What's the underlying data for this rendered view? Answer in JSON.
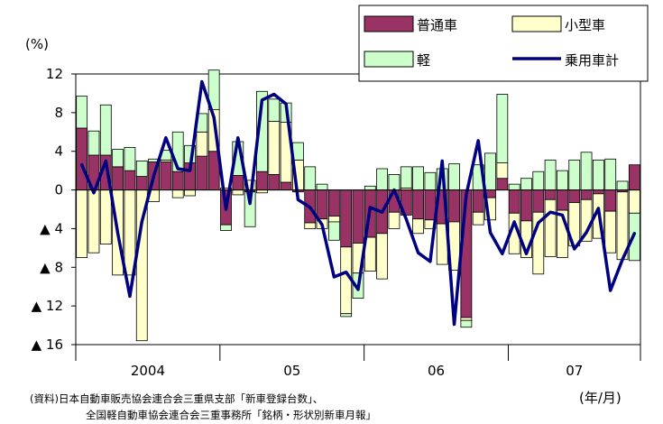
{
  "chart_data": {
    "type": "bar",
    "ylabel": "(%)",
    "xlabel": "(年/月)",
    "ylim": [
      -16,
      12
    ],
    "y_ticks": [
      12,
      8,
      4,
      0,
      -4,
      -8,
      -12,
      -16
    ],
    "y_tick_labels": [
      "12",
      "8",
      "4",
      "0",
      "▲ 4",
      "▲ 8",
      "▲ 12",
      "▲ 16"
    ],
    "x_group_labels": [
      "2004",
      "05",
      "06",
      "07"
    ],
    "legend_position": "top-right",
    "colors": {
      "regular": "#993366",
      "small": "#FFFFCC",
      "kei": "#CCFFCC",
      "total": "#000080"
    },
    "series": [
      {
        "name": "普通車",
        "type": "stacked-bar",
        "values": [
          6.4,
          3.6,
          3.6,
          2.4,
          2.0,
          1.4,
          2.9,
          2.9,
          1.9,
          2.8,
          3.5,
          4.0,
          -3.6,
          1.5,
          -0.2,
          1.9,
          1.6,
          0.8,
          -0.2,
          -3.4,
          -3.0,
          -2.7,
          -5.9,
          -5.5,
          -4.9,
          -4.5,
          -2.3,
          -2.6,
          -3.0,
          -3.1,
          -3.5,
          -3.3,
          -13.2,
          -2.3,
          -0.8,
          1.2,
          -2.4,
          -3.2,
          -2.3,
          -1.0,
          -2.1,
          -1.3,
          -1.0,
          -0.4,
          -2.2,
          -0.2,
          2.6
        ],
        "stack": "pos"
      },
      {
        "name": "小型車",
        "type": "stacked-bar",
        "values": [
          -7.0,
          -6.5,
          -5.6,
          -8.8,
          -8.8,
          -15.6,
          -1.2,
          0.2,
          -0.8,
          -0.6,
          2.5,
          4.3,
          0.2,
          -0.5,
          1.0,
          -0.3,
          5.5,
          6.2,
          3.1,
          -0.6,
          -1.0,
          -0.6,
          -6.9,
          -3.1,
          -3.5,
          -4.7,
          -1.7,
          0.2,
          -1.5,
          -0.9,
          -4.2,
          -5.0,
          -0.3,
          -1.3,
          -2.3,
          1.6,
          -4.2,
          -3.8,
          -6.4,
          -5.9,
          -4.9,
          -4.5,
          -4.3,
          -4.6,
          -4.3,
          -7.0,
          -2.4
        ]
      },
      {
        "name": "軽",
        "type": "stacked-bar",
        "values": [
          3.3,
          2.5,
          5.2,
          1.8,
          2.4,
          1.6,
          0.3,
          1.0,
          4.1,
          1.8,
          1.9,
          4.1,
          -0.6,
          3.5,
          -3.6,
          8.3,
          2.3,
          2.0,
          1.8,
          2.4,
          0.6,
          -1.9,
          -0.3,
          -2.6,
          0.4,
          2.2,
          1.6,
          2.2,
          2.4,
          1.8,
          2.2,
          2.7,
          -0.7,
          2.6,
          3.8,
          7.1,
          0.6,
          1.2,
          1.9,
          3.1,
          2.0,
          3.1,
          3.9,
          3.1,
          3.2,
          0.9,
          -4.9
        ]
      },
      {
        "name": "乗用車計",
        "type": "line",
        "values": [
          2.6,
          -0.3,
          3.0,
          -4.5,
          -11.0,
          -3.3,
          1.5,
          5.4,
          2.2,
          2.0,
          11.2,
          7.5,
          -2.0,
          5.4,
          -1.4,
          9.3,
          9.9,
          8.9,
          -1.0,
          -1.8,
          -3.6,
          -9.0,
          -8.5,
          -10.3,
          -1.8,
          -2.3,
          0.0,
          -3.0,
          -6.5,
          -7.4,
          3.0,
          -13.9,
          -0.5,
          5.1,
          -4.4,
          -6.6,
          -3.3,
          -6.6,
          -3.4,
          -2.3,
          -2.6,
          -6.1,
          -4.4,
          -1.9,
          -10.4,
          -7.2,
          -4.5
        ]
      }
    ]
  },
  "source_note": {
    "line1": "(資料)日本自動車販売協会連合会三重県支部「新車登録台数」、",
    "line2": "全国軽自動車協会連合会三重事務所「銘柄・形状別新車月報」"
  }
}
